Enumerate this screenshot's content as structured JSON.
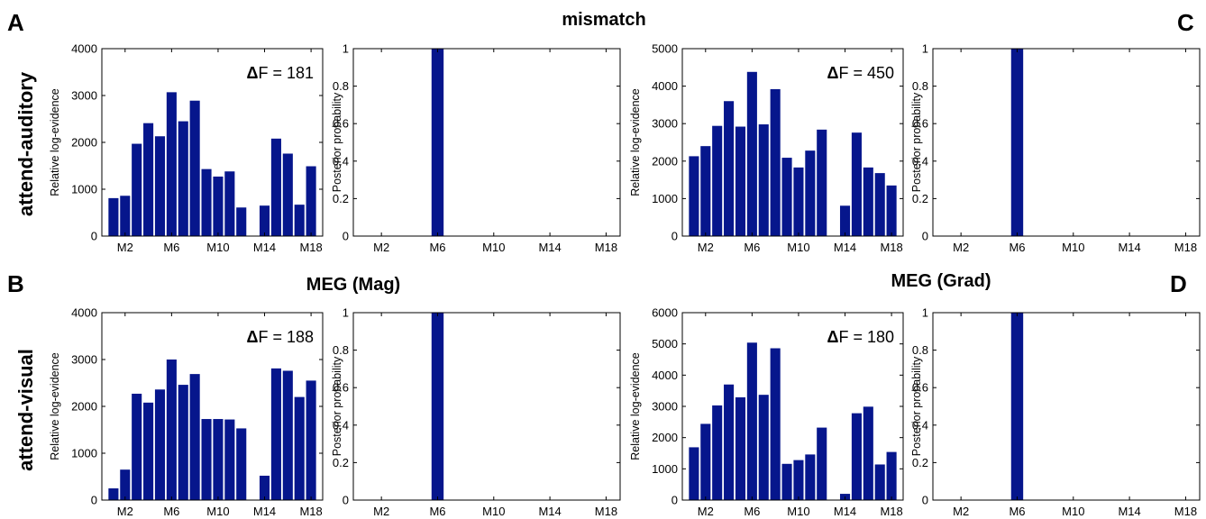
{
  "labels": {
    "panel_A": "A",
    "panel_B": "B",
    "panel_C": "C",
    "panel_D": "D",
    "title_top": "mismatch",
    "title_mag": "MEG (Mag)",
    "title_grad": "MEG (Grad)",
    "row_top": "attend-auditory",
    "row_bottom": "attend-visual"
  },
  "bar_color": "#06168c",
  "chart_data": [
    {
      "type": "bar",
      "panel": "A",
      "ylabel": "Relative log-evidence",
      "ylim": [
        0,
        4000
      ],
      "yticks": [
        0,
        1000,
        2000,
        3000,
        4000
      ],
      "xticklabels": [
        "M2",
        "M6",
        "M10",
        "M14",
        "M18"
      ],
      "categories": [
        "M1",
        "M2",
        "M3",
        "M4",
        "M5",
        "M6",
        "M7",
        "M8",
        "M9",
        "M10",
        "M11",
        "M12",
        "M13",
        "M14",
        "M15",
        "M16",
        "M17",
        "M18"
      ],
      "values": [
        810,
        860,
        1970,
        2410,
        2130,
        3070,
        2450,
        2890,
        1430,
        1270,
        1380,
        610,
        0,
        650,
        2080,
        1760,
        670,
        1490
      ],
      "annotation_delta": "Δ",
      "annotation_rest": "F = 181"
    },
    {
      "type": "bar",
      "panel": "A",
      "ylabel": "Posterior probability",
      "ylim": [
        0,
        1
      ],
      "yticks": [
        "0",
        "0.2",
        "0.4",
        "0.6",
        "0.8",
        "1"
      ],
      "xticklabels": [
        "M2",
        "M6",
        "M10",
        "M14",
        "M18"
      ],
      "categories": [
        "M1",
        "M2",
        "M3",
        "M4",
        "M5",
        "M6",
        "M7",
        "M8",
        "M9",
        "M10",
        "M11",
        "M12",
        "M13",
        "M14",
        "M15",
        "M16",
        "M17",
        "M18"
      ],
      "values": [
        0,
        0,
        0,
        0,
        0,
        1,
        0,
        0,
        0,
        0,
        0,
        0,
        0,
        0,
        0,
        0,
        0,
        0
      ]
    },
    {
      "type": "bar",
      "panel": "C",
      "ylabel": "Relative log-evidence",
      "ylim": [
        0,
        5000
      ],
      "yticks": [
        0,
        1000,
        2000,
        3000,
        4000,
        5000
      ],
      "xticklabels": [
        "M2",
        "M6",
        "M10",
        "M14",
        "M18"
      ],
      "categories": [
        "M1",
        "M2",
        "M3",
        "M4",
        "M5",
        "M6",
        "M7",
        "M8",
        "M9",
        "M10",
        "M11",
        "M12",
        "M13",
        "M14",
        "M15",
        "M16",
        "M17",
        "M18"
      ],
      "values": [
        2130,
        2400,
        2940,
        3600,
        2920,
        4380,
        2980,
        3920,
        2090,
        1830,
        2280,
        2840,
        0,
        810,
        2760,
        1830,
        1680,
        1350
      ],
      "annotation_delta": "Δ",
      "annotation_rest": "F = 450"
    },
    {
      "type": "bar",
      "panel": "C",
      "ylabel": "Posterior probability",
      "ylim": [
        0,
        1
      ],
      "yticks": [
        "0",
        "0.2",
        "0.4",
        "0.6",
        "0.8",
        "1"
      ],
      "xticklabels": [
        "M2",
        "M6",
        "M10",
        "M14",
        "M18"
      ],
      "categories": [
        "M1",
        "M2",
        "M3",
        "M4",
        "M5",
        "M6",
        "M7",
        "M8",
        "M9",
        "M10",
        "M11",
        "M12",
        "M13",
        "M14",
        "M15",
        "M16",
        "M17",
        "M18"
      ],
      "values": [
        0,
        0,
        0,
        0,
        0,
        1,
        0,
        0,
        0,
        0,
        0,
        0,
        0,
        0,
        0,
        0,
        0,
        0
      ]
    },
    {
      "type": "bar",
      "panel": "B",
      "ylabel": "Relative log-evidence",
      "ylim": [
        0,
        4000
      ],
      "yticks": [
        0,
        1000,
        2000,
        3000,
        4000
      ],
      "xticklabels": [
        "M2",
        "M6",
        "M10",
        "M14",
        "M18"
      ],
      "categories": [
        "M1",
        "M2",
        "M3",
        "M4",
        "M5",
        "M6",
        "M7",
        "M8",
        "M9",
        "M10",
        "M11",
        "M12",
        "M13",
        "M14",
        "M15",
        "M16",
        "M17",
        "M18"
      ],
      "values": [
        250,
        650,
        2270,
        2080,
        2360,
        3000,
        2460,
        2690,
        1730,
        1730,
        1720,
        1530,
        0,
        520,
        2810,
        2760,
        2200,
        2550
      ],
      "annotation_delta": "Δ",
      "annotation_rest": "F = 188"
    },
    {
      "type": "bar",
      "panel": "B",
      "ylabel": "Posterior probability",
      "ylim": [
        0,
        1
      ],
      "yticks": [
        "0",
        "0.2",
        "0.4",
        "0.6",
        "0.8",
        "1"
      ],
      "xticklabels": [
        "M2",
        "M6",
        "M10",
        "M14",
        "M18"
      ],
      "categories": [
        "M1",
        "M2",
        "M3",
        "M4",
        "M5",
        "M6",
        "M7",
        "M8",
        "M9",
        "M10",
        "M11",
        "M12",
        "M13",
        "M14",
        "M15",
        "M16",
        "M17",
        "M18"
      ],
      "values": [
        0,
        0,
        0,
        0,
        0,
        1,
        0,
        0,
        0,
        0,
        0,
        0,
        0,
        0,
        0,
        0,
        0,
        0
      ]
    },
    {
      "type": "bar",
      "panel": "D",
      "ylabel": "Relative log-evidence",
      "ylim": [
        0,
        6000
      ],
      "yticks": [
        0,
        1000,
        2000,
        3000,
        4000,
        5000,
        6000
      ],
      "xticklabels": [
        "M2",
        "M6",
        "M10",
        "M14",
        "M18"
      ],
      "categories": [
        "M1",
        "M2",
        "M3",
        "M4",
        "M5",
        "M6",
        "M7",
        "M8",
        "M9",
        "M10",
        "M11",
        "M12",
        "M13",
        "M14",
        "M15",
        "M16",
        "M17",
        "M18"
      ],
      "values": [
        1690,
        2440,
        3030,
        3700,
        3290,
        5040,
        3370,
        4860,
        1160,
        1280,
        1460,
        2320,
        0,
        200,
        2780,
        2990,
        1140,
        1540
      ],
      "annotation_delta": "Δ",
      "annotation_rest": "F = 180"
    },
    {
      "type": "bar",
      "panel": "D",
      "ylabel": "Posterior probability",
      "ylim": [
        0,
        1
      ],
      "yticks": [
        "0",
        "0.2",
        "0.4",
        "0.6",
        "0.8",
        "1"
      ],
      "xticklabels": [
        "M2",
        "M6",
        "M10",
        "M14",
        "M18"
      ],
      "categories": [
        "M1",
        "M2",
        "M3",
        "M4",
        "M5",
        "M6",
        "M7",
        "M8",
        "M9",
        "M10",
        "M11",
        "M12",
        "M13",
        "M14",
        "M15",
        "M16",
        "M17",
        "M18"
      ],
      "values": [
        0,
        0,
        0,
        0,
        0,
        1,
        0,
        0,
        0,
        0,
        0,
        0,
        0,
        0,
        0,
        0,
        0,
        0
      ]
    }
  ]
}
